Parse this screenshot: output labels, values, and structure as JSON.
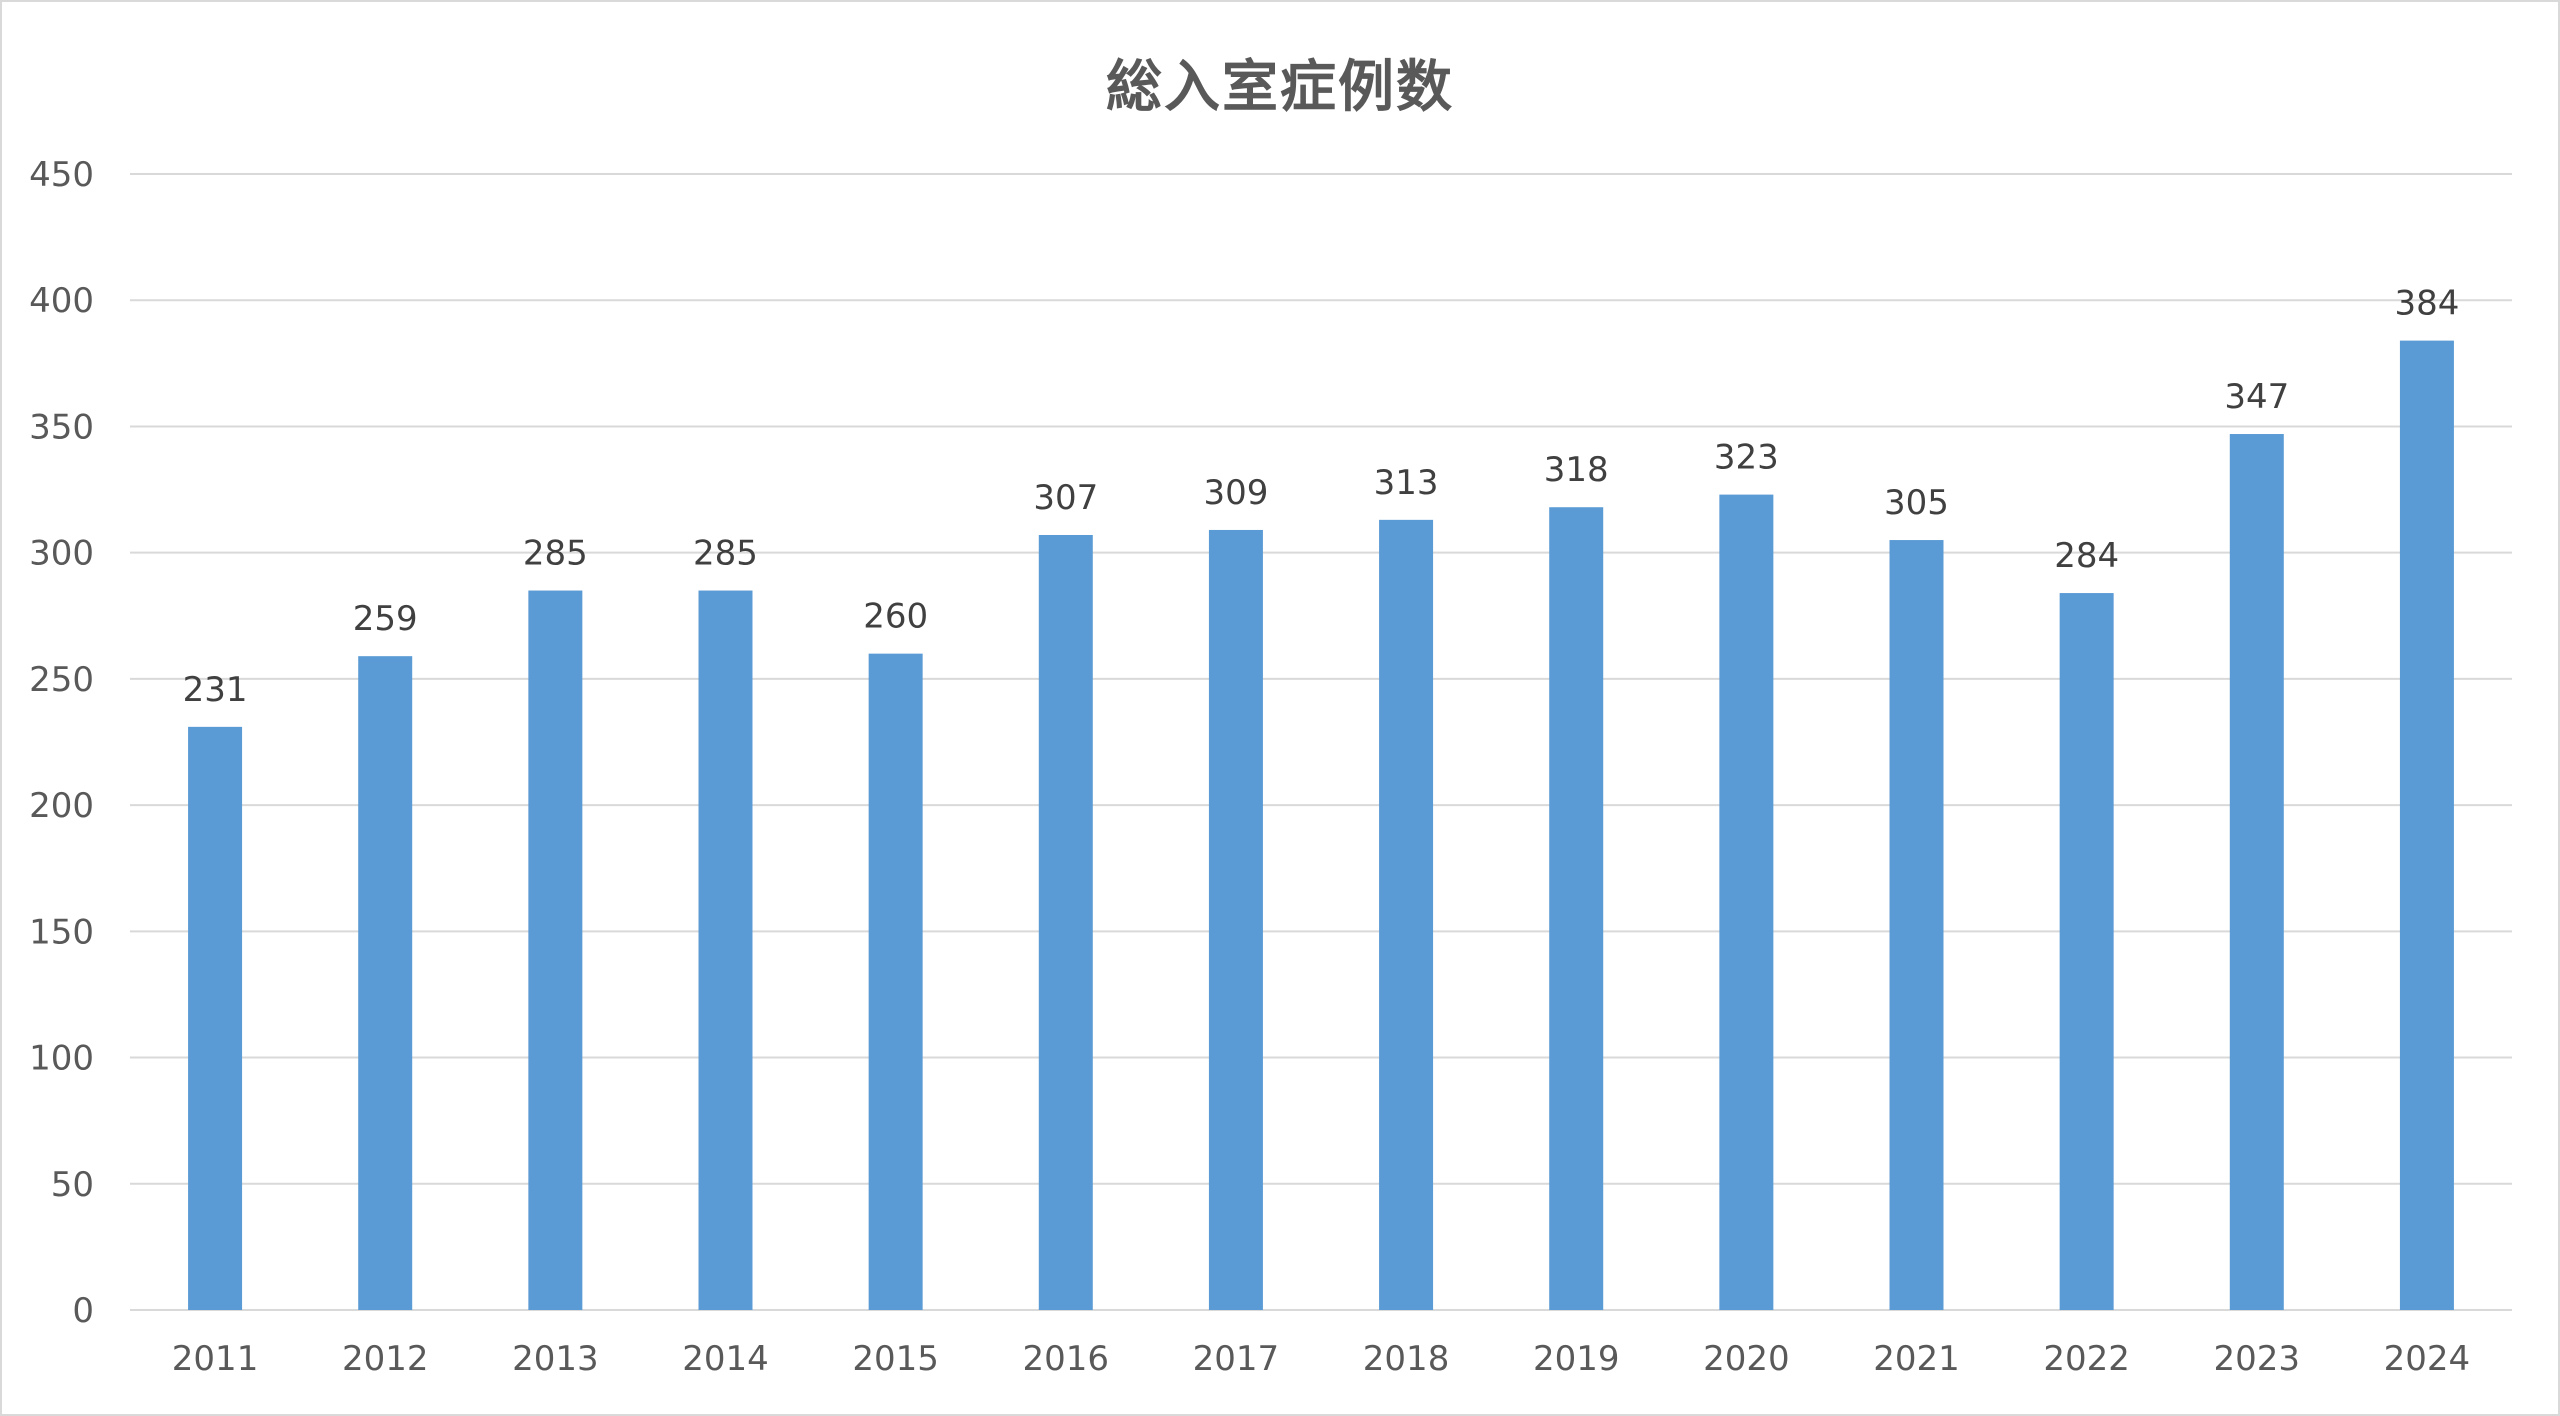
{
  "chart_data": {
    "type": "bar",
    "title": "総入室症例数",
    "xlabel": "",
    "ylabel": "",
    "categories": [
      "2011",
      "2012",
      "2013",
      "2014",
      "2015",
      "2016",
      "2017",
      "2018",
      "2019",
      "2020",
      "2021",
      "2022",
      "2023",
      "2024"
    ],
    "values": [
      231,
      259,
      285,
      285,
      260,
      307,
      309,
      313,
      318,
      323,
      305,
      284,
      347,
      384
    ],
    "ylim": [
      0,
      450
    ],
    "yticks": [
      0,
      50,
      100,
      150,
      200,
      250,
      300,
      350,
      400,
      450
    ],
    "grid": true,
    "legend": "none",
    "data_labels": true,
    "colors": {
      "bar": "#5b9bd5",
      "grid": "#d9d9d9",
      "tick_text": "#595959",
      "data_label_text": "#404040"
    }
  }
}
